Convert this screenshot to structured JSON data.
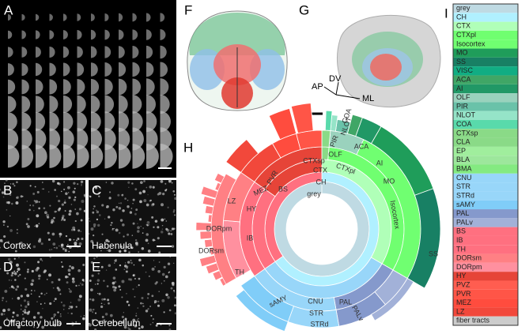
{
  "panels": {
    "A": {
      "letter": "A"
    },
    "B": {
      "letter": "B",
      "label": "Cortex"
    },
    "C": {
      "letter": "C",
      "label": "Habenula"
    },
    "D": {
      "letter": "D",
      "label": "Olfactory bulb"
    },
    "E": {
      "letter": "E",
      "label": "Cerebellum"
    },
    "F": {
      "letter": "F"
    },
    "G": {
      "letter": "G",
      "axes": [
        "AP",
        "DV",
        "ML"
      ]
    },
    "H": {
      "letter": "H",
      "labels": [
        "grey",
        "CH",
        "CTX",
        "CTXsp",
        "CTXpl",
        "OLF",
        "PIR",
        "NLOT",
        "COA",
        "ACA",
        "AI",
        "MO",
        "Isocortex",
        "SS",
        "BS",
        "IB",
        "HY",
        "LZ",
        "MEZ",
        "PVR",
        "TH",
        "DORpm",
        "DORsm",
        "CNU",
        "STR",
        "STRd",
        "sAMY",
        "PAL",
        "PALv"
      ]
    },
    "I": {
      "letter": "I"
    }
  },
  "legend": [
    {
      "name": "grey",
      "color": "#bfdae3"
    },
    {
      "name": "CH",
      "color": "#b0f0ff"
    },
    {
      "name": "CTX",
      "color": "#b0ffb8"
    },
    {
      "name": "CTXpl",
      "color": "#70ff70"
    },
    {
      "name": "Isocortex",
      "color": "#70ff71"
    },
    {
      "name": "MO",
      "color": "#1f9d5a"
    },
    {
      "name": "SS",
      "color": "#188064"
    },
    {
      "name": "VISC",
      "color": "#11ad83"
    },
    {
      "name": "ACA",
      "color": "#40a666"
    },
    {
      "name": "AI",
      "color": "#219866"
    },
    {
      "name": "OLF",
      "color": "#9ad2bd"
    },
    {
      "name": "PIR",
      "color": "#6ac2a9"
    },
    {
      "name": "NLOT",
      "color": "#95e4c8"
    },
    {
      "name": "COA",
      "color": "#59daab"
    },
    {
      "name": "CTXsp",
      "color": "#8ada87"
    },
    {
      "name": "CLA",
      "color": "#8ada87"
    },
    {
      "name": "EP",
      "color": "#a0ee9d"
    },
    {
      "name": "BLA",
      "color": "#9de79c"
    },
    {
      "name": "BMA",
      "color": "#84ea81"
    },
    {
      "name": "CNU",
      "color": "#98d6f9"
    },
    {
      "name": "STR",
      "color": "#98d6f9"
    },
    {
      "name": "STRd",
      "color": "#98d6f9"
    },
    {
      "name": "sAMY",
      "color": "#80cdf8"
    },
    {
      "name": "PAL",
      "color": "#8599cc"
    },
    {
      "name": "PALv",
      "color": "#a2b1d8"
    },
    {
      "name": "BS",
      "color": "#ff7080"
    },
    {
      "name": "IB",
      "color": "#ff7080"
    },
    {
      "name": "TH",
      "color": "#ff7080"
    },
    {
      "name": "DORsm",
      "color": "#ff8084"
    },
    {
      "name": "DORpm",
      "color": "#ff909f"
    },
    {
      "name": "HY",
      "color": "#e64438"
    },
    {
      "name": "PVZ",
      "color": "#ff5d50"
    },
    {
      "name": "PVR",
      "color": "#ff5547"
    },
    {
      "name": "MEZ",
      "color": "#ff4c3e"
    },
    {
      "name": "LZ",
      "color": "#f2483b"
    },
    {
      "name": "fiber tracts",
      "color": "#cccccc"
    }
  ]
}
